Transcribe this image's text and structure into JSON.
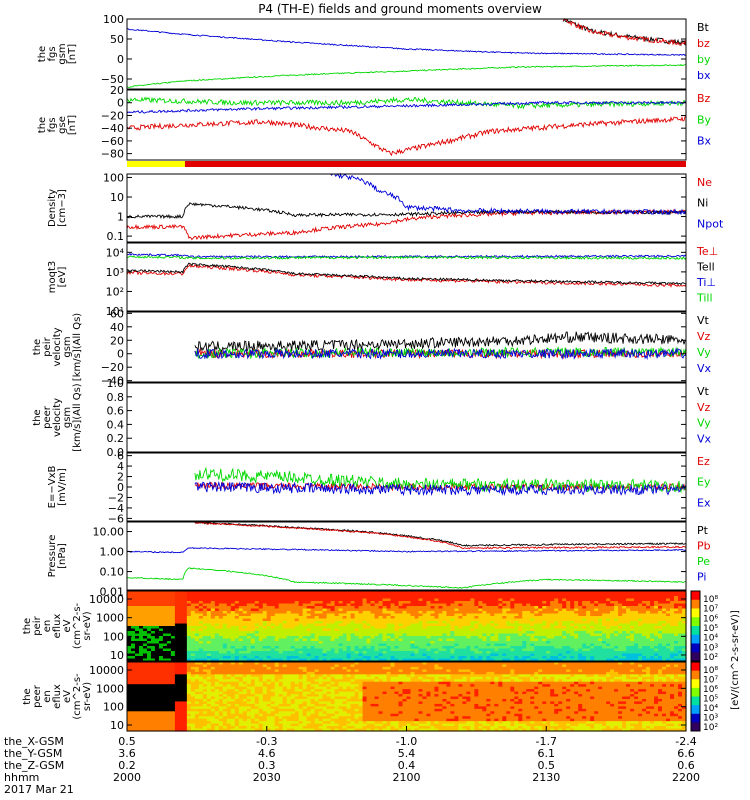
{
  "title": "P4 (TH-E) fields and ground moments overview",
  "colors": {
    "black": "#000000",
    "red": "#e00000",
    "green": "#00d800",
    "blue": "#0000d8",
    "yellow": "#ffff00",
    "bar_red": "#e00000"
  },
  "footer": {
    "rows": [
      {
        "label": "the_X-GSM",
        "values": [
          "0.5",
          "-0.3",
          "-1.0",
          "-1.7",
          "-2.4"
        ]
      },
      {
        "label": "the_Y-GSM",
        "values": [
          "3.6",
          "4.6",
          "5.4",
          "6.1",
          "6.6"
        ]
      },
      {
        "label": "the_Z-GSM",
        "values": [
          "0.2",
          "0.3",
          "0.4",
          "0.5",
          "0.6"
        ]
      },
      {
        "label": "hhmm",
        "values": [
          "2000",
          "2030",
          "2100",
          "2130",
          "2200"
        ]
      }
    ],
    "date": "2017 Mar 21"
  },
  "colorbar_label": "[eV/(cm^2-s-sr-eV)]",
  "chart_data": [
    {
      "id": "fgs",
      "type": "line",
      "ylabel": [
        "the",
        "fgs",
        "gsm",
        "[nT]"
      ],
      "ylim": [
        -75,
        100
      ],
      "yticks": [
        "100",
        "50",
        "0",
        "−50"
      ],
      "ytick_values": [
        100,
        50,
        0,
        -50
      ],
      "series": [
        {
          "name": "Bt",
          "color": "black",
          "x": [
            0.78,
            0.83,
            0.9,
            1.0
          ],
          "values": [
            100,
            70,
            55,
            40
          ],
          "noise": 6
        },
        {
          "name": "bz",
          "color": "red",
          "x": [
            0.78,
            0.83,
            0.9,
            1.0
          ],
          "values": [
            100,
            68,
            53,
            38
          ],
          "noise": 6
        },
        {
          "name": "by",
          "color": "green",
          "x": [
            0,
            0.1,
            0.3,
            0.5,
            0.7,
            1.0
          ],
          "values": [
            -70,
            -55,
            -40,
            -30,
            -20,
            -15
          ],
          "noise": 1.5
        },
        {
          "name": "bx",
          "color": "blue",
          "x": [
            0,
            0.1,
            0.3,
            0.5,
            0.7,
            1.0
          ],
          "values": [
            75,
            62,
            42,
            25,
            15,
            10
          ],
          "noise": 1.5
        }
      ]
    },
    {
      "id": "fgs_gse",
      "type": "line",
      "ylabel": [
        "the",
        "fgs",
        "gse",
        "[nT]"
      ],
      "ylim": [
        -90,
        20
      ],
      "yticks": [
        "20",
        "0",
        "−20",
        "−40",
        "−60",
        "−80"
      ],
      "ytick_values": [
        20,
        0,
        -20,
        -40,
        -60,
        -80
      ],
      "series": [
        {
          "name": "Bz",
          "color": "red",
          "x": [
            0,
            0.1,
            0.25,
            0.4,
            0.47,
            0.55,
            0.65,
            0.8,
            1.0
          ],
          "values": [
            -40,
            -35,
            -30,
            -45,
            -80,
            -65,
            -45,
            -35,
            -25
          ],
          "noise": 4
        },
        {
          "name": "By",
          "color": "green",
          "x": [
            0,
            0.2,
            0.4,
            0.5,
            0.7,
            1.0
          ],
          "values": [
            5,
            0,
            0,
            5,
            -5,
            0
          ],
          "noise": 4
        },
        {
          "name": "Bx",
          "color": "blue",
          "x": [
            0,
            0.2,
            0.5,
            0.75,
            1.0
          ],
          "values": [
            -15,
            -10,
            -5,
            0,
            0
          ],
          "noise": 2
        }
      ]
    },
    {
      "id": "density",
      "type": "line",
      "scale": "log",
      "ylabel": [
        "Density",
        "[cm−3]"
      ],
      "ylim": [
        0.05,
        150
      ],
      "yticks": [
        "100",
        "10",
        "1",
        "0.1"
      ],
      "ytick_values": [
        100,
        10,
        1,
        0.1
      ],
      "series": [
        {
          "name": "Ne",
          "color": "red",
          "x": [
            0,
            0.1,
            0.11,
            0.3,
            0.45,
            0.55,
            0.7,
            1.0
          ],
          "values": [
            0.3,
            0.3,
            0.08,
            0.15,
            0.4,
            1.0,
            1.5,
            1.8
          ],
          "noise": 0.1
        },
        {
          "name": "Ni",
          "color": "black",
          "x": [
            0,
            0.1,
            0.11,
            0.3,
            0.5,
            0.7,
            1.0
          ],
          "values": [
            1.0,
            1.0,
            4.5,
            1.2,
            1.3,
            1.8,
            1.6
          ],
          "noise": 0.08
        },
        {
          "name": "Npot",
          "color": "blue",
          "x": [
            0.36,
            0.4,
            0.45,
            0.5,
            0.6,
            0.8,
            1.0
          ],
          "values": [
            150,
            100,
            20,
            3,
            2,
            1.8,
            1.7
          ],
          "noise": 0.12
        }
      ]
    },
    {
      "id": "temp",
      "type": "line",
      "scale": "log",
      "ylabel": [
        "moqt3",
        "[eV]"
      ],
      "ylim": [
        10,
        30000
      ],
      "yticks": [
        "10⁴",
        "10³",
        "10²",
        "10¹"
      ],
      "ytick_values": [
        10000,
        1000,
        100,
        10
      ],
      "series": [
        {
          "name": "Te⊥",
          "color": "red",
          "x": [
            0,
            0.1,
            0.11,
            0.3,
            0.5,
            0.7,
            1.0
          ],
          "values": [
            900,
            800,
            2000,
            700,
            400,
            300,
            200
          ],
          "noise": 0.08
        },
        {
          "name": "Tell",
          "color": "black",
          "x": [
            0,
            0.1,
            0.11,
            0.3,
            0.5,
            0.7,
            1.0
          ],
          "values": [
            1200,
            1000,
            2500,
            800,
            450,
            350,
            250
          ],
          "noise": 0.06
        },
        {
          "name": "Ti⊥",
          "color": "blue",
          "x": [
            0,
            0.1,
            0.11,
            0.5,
            1.0
          ],
          "values": [
            8000,
            7000,
            6000,
            6000,
            6500
          ],
          "noise": 0.05
        },
        {
          "name": "Till",
          "color": "green",
          "x": [
            0,
            0.1,
            0.11,
            0.5,
            1.0
          ],
          "values": [
            6000,
            5500,
            5000,
            5500,
            5000
          ],
          "noise": 0.06
        }
      ]
    },
    {
      "id": "peir_vel",
      "type": "line",
      "ylabel": [
        "the",
        "peir",
        "velocity",
        "gsm",
        "[km/s](All Qs)"
      ],
      "ylim": [
        -42,
        62
      ],
      "yticks": [
        "60",
        "40",
        "20",
        "0",
        "−20",
        "−40"
      ],
      "ytick_values": [
        60,
        40,
        20,
        0,
        -20,
        -40
      ],
      "series": [
        {
          "name": "Vt",
          "color": "black",
          "x": [
            0.12,
            0.3,
            0.5,
            0.7,
            0.8,
            1.0
          ],
          "values": [
            10,
            12,
            15,
            20,
            25,
            20
          ],
          "noise": 8
        },
        {
          "name": "Vz",
          "color": "red",
          "x": [
            0.12,
            0.5,
            1.0
          ],
          "values": [
            0,
            0,
            0
          ],
          "noise": 6
        },
        {
          "name": "Vy",
          "color": "green",
          "x": [
            0.12,
            0.5,
            1.0
          ],
          "values": [
            0,
            2,
            3
          ],
          "noise": 7
        },
        {
          "name": "Vx",
          "color": "blue",
          "x": [
            0.12,
            0.5,
            1.0
          ],
          "values": [
            0,
            0,
            0
          ],
          "noise": 7
        }
      ]
    },
    {
      "id": "peer_vel",
      "type": "line",
      "ylabel": [
        "the",
        "peer",
        "velocity",
        "gsm",
        "[km/s](All Qs)"
      ],
      "ylim": [
        0,
        1
      ],
      "yticks": [
        "1.0",
        "0.8",
        "0.6",
        "0.4",
        "0.2",
        "0.0"
      ],
      "ytick_values": [
        1,
        0.8,
        0.6,
        0.4,
        0.2,
        0
      ],
      "series": [
        {
          "name": "Vt",
          "color": "black",
          "x": [],
          "values": []
        },
        {
          "name": "Vz",
          "color": "red",
          "x": [],
          "values": []
        },
        {
          "name": "Vy",
          "color": "green",
          "x": [],
          "values": []
        },
        {
          "name": "Vx",
          "color": "blue",
          "x": [],
          "values": []
        }
      ]
    },
    {
      "id": "efield",
      "type": "line",
      "ylabel": [
        "E=−VxB",
        "[mV/m]"
      ],
      "ylim": [
        -6.5,
        6.5
      ],
      "yticks": [
        "6",
        "4",
        "2",
        "0",
        "−2",
        "−4",
        "−6"
      ],
      "ytick_values": [
        6,
        4,
        2,
        0,
        -2,
        -4,
        -6
      ],
      "series": [
        {
          "name": "Ez",
          "color": "red",
          "x": [
            0.12,
            0.5,
            1.0
          ],
          "values": [
            0.3,
            0,
            0
          ],
          "noise": 0.6
        },
        {
          "name": "Ey",
          "color": "green",
          "x": [
            0.12,
            0.3,
            0.5,
            1.0
          ],
          "values": [
            2.5,
            1.8,
            0.5,
            0.2
          ],
          "noise": 1.2
        },
        {
          "name": "Ex",
          "color": "blue",
          "x": [
            0.12,
            0.5,
            1.0
          ],
          "values": [
            0,
            -0.5,
            -0.5
          ],
          "noise": 1.0
        }
      ]
    },
    {
      "id": "pressure",
      "type": "line",
      "scale": "log",
      "ylabel": [
        "Pressure",
        "[nPa]"
      ],
      "ylim": [
        0.012,
        30
      ],
      "yticks": [
        "10.00",
        "1.00",
        "0.10",
        "0.01"
      ],
      "ytick_values": [
        10,
        1,
        0.1,
        0.01
      ],
      "series": [
        {
          "name": "Pt",
          "color": "black",
          "x": [
            0.12,
            0.3,
            0.5,
            0.6,
            0.8,
            1.0
          ],
          "values": [
            28,
            16,
            6,
            2,
            2.3,
            2.5
          ],
          "noise": 0.04
        },
        {
          "name": "Pb",
          "color": "red",
          "x": [
            0.12,
            0.3,
            0.5,
            0.6,
            0.8,
            1.0
          ],
          "values": [
            27,
            15,
            5.5,
            1.5,
            1.6,
            1.7
          ],
          "noise": 0.04
        },
        {
          "name": "Pe",
          "color": "green",
          "x": [
            0,
            0.1,
            0.11,
            0.3,
            0.6,
            0.75,
            1.0
          ],
          "values": [
            0.05,
            0.04,
            0.15,
            0.03,
            0.015,
            0.04,
            0.03
          ],
          "noise": 0.03
        },
        {
          "name": "Pi",
          "color": "blue",
          "x": [
            0,
            0.1,
            0.11,
            0.5,
            1.0
          ],
          "values": [
            1.0,
            0.9,
            1.5,
            1.0,
            1.2
          ],
          "noise": 0.03
        }
      ]
    },
    {
      "id": "peir_eflux",
      "type": "heatmap",
      "ylabel": [
        "the",
        "peir",
        "en",
        "eflux",
        "eV",
        "(cm^2-s-",
        "sr-eV)"
      ],
      "yticks": [
        "10000",
        "1000",
        "100",
        "10"
      ],
      "ytick_values": [
        10000,
        1000,
        100,
        10
      ]
    },
    {
      "id": "peer_eflux",
      "type": "heatmap",
      "ylabel": [
        "the",
        "peer",
        "en",
        "eflux",
        "eV",
        "(cm^2-s-",
        "sr-eV)"
      ],
      "yticks": [
        "10000",
        "1000",
        "100",
        "10"
      ],
      "ytick_values": [
        10000,
        1000,
        100,
        10
      ]
    }
  ],
  "colorbar_ticks": {
    "top": [
      "10⁸",
      "10⁷",
      "10⁶",
      "10⁵",
      "10⁴",
      "10³",
      "10²"
    ],
    "bottom": [
      "10⁸",
      "10⁷",
      "10⁶",
      "10⁵",
      "10⁴",
      "10³",
      "10²"
    ]
  }
}
